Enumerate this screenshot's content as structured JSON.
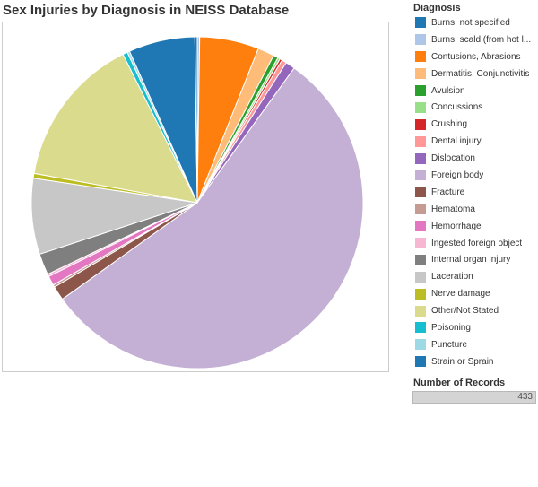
{
  "chart_data": {
    "type": "pie",
    "title": "Sex Injuries by Diagnosis in NEISS Database",
    "legend_title": "Diagnosis",
    "legend_position": "right",
    "slices": [
      {
        "label": "Burns, not specified",
        "value": 1,
        "color": "#1f77b4"
      },
      {
        "label": "Burns, scald (from hot l...",
        "value": 1,
        "color": "#aec7e8"
      },
      {
        "label": "Contusions, Abrasions",
        "value": 25,
        "color": "#ff7f0e"
      },
      {
        "label": "Dermatitis, Conjunctivitis",
        "value": 7,
        "color": "#ffbb78"
      },
      {
        "label": "Avulsion",
        "value": 2,
        "color": "#2ca02c"
      },
      {
        "label": "Concussions",
        "value": 1,
        "color": "#98df8a"
      },
      {
        "label": "Crushing",
        "value": 1,
        "color": "#d62728"
      },
      {
        "label": "Dental injury",
        "value": 2,
        "color": "#ff9896"
      },
      {
        "label": "Dislocation",
        "value": 4,
        "color": "#9467bd"
      },
      {
        "label": "Foreign body",
        "value": 239,
        "color": "#c5b0d5"
      },
      {
        "label": "Fracture",
        "value": 6,
        "color": "#8c564b"
      },
      {
        "label": "Hematoma",
        "value": 1,
        "color": "#c49c94"
      },
      {
        "label": "Hemorrhage",
        "value": 4,
        "color": "#e377c2"
      },
      {
        "label": "Ingested foreign object",
        "value": 1,
        "color": "#f7b6d2"
      },
      {
        "label": "Internal organ injury",
        "value": 9,
        "color": "#7f7f7f"
      },
      {
        "label": "Laceration",
        "value": 32,
        "color": "#c7c7c7"
      },
      {
        "label": "Nerve damage",
        "value": 2,
        "color": "#bcbd22"
      },
      {
        "label": "Other/Not Stated",
        "value": 64,
        "color": "#dbdb8d"
      },
      {
        "label": "Poisoning",
        "value": 2,
        "color": "#17becf"
      },
      {
        "label": "Puncture",
        "value": 1,
        "color": "#9edae5"
      },
      {
        "label": "Strain or Sprain",
        "value": 28,
        "color": "#1f77b4"
      }
    ],
    "drawing_order": [
      1,
      2,
      3,
      4,
      5,
      6,
      7,
      8,
      9,
      10,
      11,
      12,
      13,
      14,
      15,
      16,
      17,
      18,
      19,
      20,
      0
    ]
  },
  "records": {
    "title": "Number of Records",
    "value": "433"
  }
}
